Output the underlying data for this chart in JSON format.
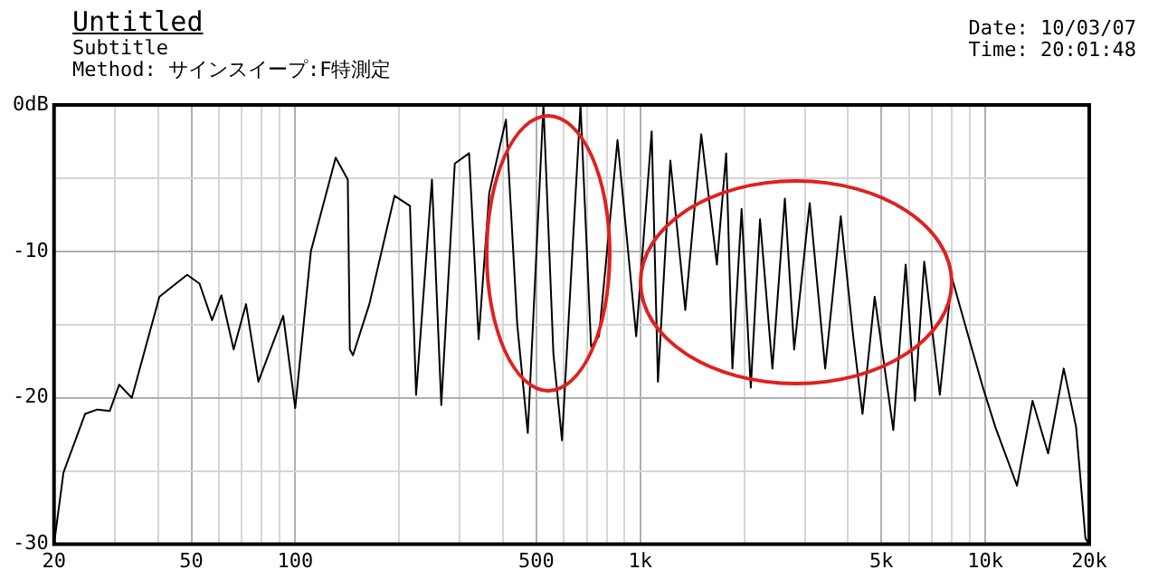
{
  "chart_data": {
    "type": "line",
    "title": "Untitled",
    "subtitle": "Subtitle",
    "annotations": [
      "Method: サインスイープ:F特測定",
      "Date: 10/03/07",
      "Time: 20:01:48"
    ],
    "log": "x",
    "grid": true,
    "legend": false,
    "marker": "none",
    "line_style": "solid",
    "xlim": [
      20,
      20000
    ],
    "ylim": [
      -30,
      0
    ],
    "xticks": [
      20,
      {
        "value": 30,
        "label": null
      },
      {
        "value": 40,
        "label": null
      },
      50,
      {
        "value": 60,
        "label": null
      },
      {
        "value": 70,
        "label": null
      },
      {
        "value": 80,
        "label": null
      },
      {
        "value": 90,
        "label": null
      },
      100,
      {
        "value": 200,
        "label": null
      },
      {
        "value": 300,
        "label": null
      },
      {
        "value": 400,
        "label": null
      },
      500,
      {
        "value": 600,
        "label": null
      },
      {
        "value": 700,
        "label": null
      },
      {
        "value": 800,
        "label": null
      },
      {
        "value": 900,
        "label": null
      },
      {
        "value": 1000,
        "label": "1k"
      },
      {
        "value": 2000,
        "label": null
      },
      {
        "value": 3000,
        "label": null
      },
      {
        "value": 4000,
        "label": null
      },
      {
        "value": 5000,
        "label": "5k"
      },
      {
        "value": 6000,
        "label": null
      },
      {
        "value": 7000,
        "label": null
      },
      {
        "value": 8000,
        "label": null
      },
      {
        "value": 9000,
        "label": null
      },
      {
        "value": 10000,
        "label": "10k"
      },
      {
        "value": 20000,
        "label": "20k"
      }
    ],
    "yticks": [
      {
        "value": 0,
        "label": "0dB"
      },
      {
        "value": -5,
        "label": null
      },
      -10,
      {
        "value": -15,
        "label": null
      },
      -20,
      {
        "value": -25,
        "label": null
      },
      -30
    ],
    "series": [
      {
        "color": "#000000",
        "x": [
          20,
          21.3,
          24.6,
          26.7,
          29,
          30.9,
          33.6,
          40.4,
          48.6,
          52.8,
          57.4,
          61.1,
          66.3,
          72,
          78.2,
          92.3,
          100,
          111,
          131,
          142,
          144,
          147,
          164,
          194,
          215,
          224,
          249,
          265,
          290,
          319,
          340,
          365,
          408,
          440,
          472,
          524,
          560,
          593,
          671,
          720,
          759,
          859,
          973,
          1079,
          1125,
          1222,
          1350,
          1502,
          1667,
          1774,
          1849,
          1966,
          2090,
          2223,
          2415,
          2624,
          2792,
          3097,
          3434,
          3810,
          4140,
          4405,
          4778,
          5410,
          5875,
          6250,
          6650,
          7380,
          8000,
          8710,
          9840,
          10690,
          12350,
          13700,
          15200,
          16870,
          18320,
          19500,
          20000
        ],
        "values": [
          -30,
          -25.1,
          -21.1,
          -20.8,
          -20.9,
          -19.1,
          -20,
          -13.1,
          -11.6,
          -12.2,
          -14.7,
          -13,
          -16.7,
          -13.6,
          -18.9,
          -14.4,
          -20.7,
          -10,
          -3.6,
          -5.1,
          -16.7,
          -17.1,
          -13.6,
          -6.2,
          -6.9,
          -19.8,
          -5.1,
          -20.5,
          -4,
          -3.3,
          -16,
          -6,
          -1,
          -15,
          -22.4,
          0,
          -17,
          -22.9,
          0,
          -16.5,
          -15.8,
          -2.4,
          -15.8,
          -1.8,
          -18.9,
          -3.8,
          -14,
          -2,
          -10.9,
          -3.3,
          -18,
          -7.1,
          -19.3,
          -7.8,
          -18,
          -6.4,
          -16.7,
          -6.7,
          -18,
          -7.6,
          -15.8,
          -21.1,
          -13.1,
          -22.2,
          -10.9,
          -20.2,
          -10.7,
          -19.8,
          -11.8,
          -14.9,
          -19.3,
          -22,
          -26,
          -20.2,
          -23.8,
          -18,
          -22,
          -29.6,
          -30
        ]
      }
    ]
  }
}
